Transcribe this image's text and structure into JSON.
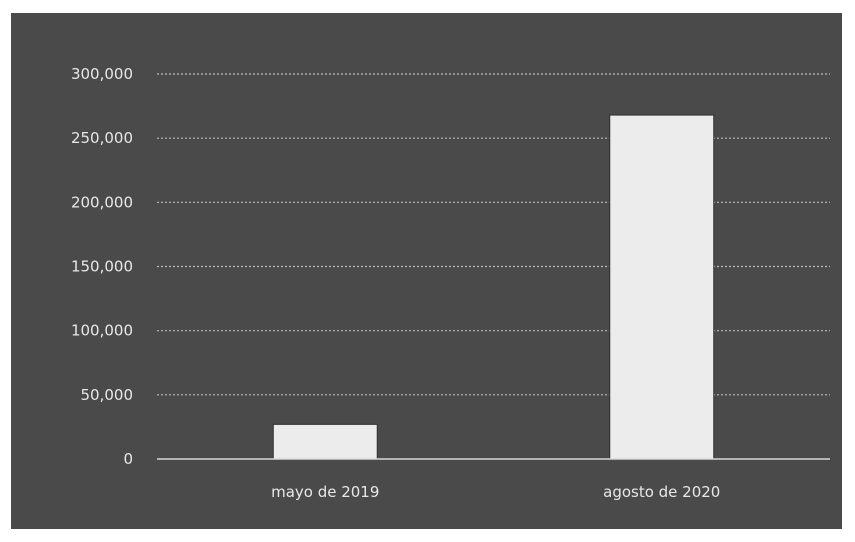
{
  "chart_data": {
    "type": "bar",
    "title": "",
    "xlabel": "",
    "ylabel": "",
    "categories": [
      "mayo de 2019",
      "agosto de 2020"
    ],
    "values": [
      27000,
      268000
    ],
    "ylim": [
      0,
      300000
    ],
    "yticks": [
      0,
      50000,
      100000,
      150000,
      200000,
      250000,
      300000
    ],
    "ytick_labels": [
      "0",
      "50,000",
      "100,000",
      "150,000",
      "200,000",
      "250,000",
      "300,000"
    ],
    "grid": true,
    "legend": "none",
    "colors": {
      "background": "#4a4a4a",
      "bar": "#ececec",
      "grid": "#bdbdbd",
      "text": "#e8e8e8"
    }
  }
}
